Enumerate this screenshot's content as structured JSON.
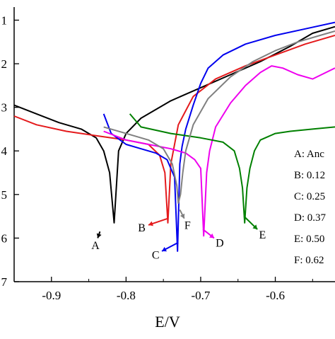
{
  "chart_data": {
    "type": "line",
    "title": "",
    "xlabel": "E/V",
    "ylabel": "",
    "xlim": [
      -0.95,
      -0.52
    ],
    "ylim": [
      -7,
      -0.7
    ],
    "x_ticks": [
      -0.9,
      -0.8,
      -0.7,
      -0.6
    ],
    "x_tick_labels": [
      "-0.9",
      "-0.8",
      "-0.7",
      "-0.6"
    ],
    "y_ticks": [
      -1,
      -2,
      -3,
      -4,
      -5,
      -6,
      -7
    ],
    "y_tick_labels": [
      "1",
      "2",
      "3",
      "4",
      "5",
      "6",
      "7"
    ],
    "grid": false,
    "legend_position": "right",
    "legend": [
      {
        "key": "A",
        "text": "A: Anc"
      },
      {
        "key": "B",
        "text": "B: 0.12"
      },
      {
        "key": "C",
        "text": "C: 0.25"
      },
      {
        "key": "D",
        "text": "D: 0.37"
      },
      {
        "key": "E",
        "text": "E: 0.50"
      },
      {
        "key": "F",
        "text": "F: 0.62"
      }
    ],
    "series": [
      {
        "key": "A",
        "color": "#000000",
        "x": [
          -0.95,
          -0.92,
          -0.89,
          -0.86,
          -0.84,
          -0.83,
          -0.822,
          -0.816,
          -0.81,
          -0.8,
          -0.78,
          -0.74,
          -0.7,
          -0.66,
          -0.62,
          -0.58,
          -0.55,
          -0.52
        ],
        "y": [
          -2.95,
          -3.15,
          -3.35,
          -3.5,
          -3.7,
          -4.0,
          -4.5,
          -5.65,
          -4.0,
          -3.6,
          -3.25,
          -2.85,
          -2.55,
          -2.25,
          -1.95,
          -1.6,
          -1.3,
          -1.15
        ],
        "label_tail": [
          -0.835,
          -5.85
        ],
        "label_pos": [
          -0.838,
          -6.0
        ]
      },
      {
        "key": "B",
        "color": "#e41a1c",
        "x": [
          -0.95,
          -0.92,
          -0.88,
          -0.84,
          -0.8,
          -0.77,
          -0.755,
          -0.748,
          -0.744,
          -0.74,
          -0.73,
          -0.71,
          -0.68,
          -0.64,
          -0.6,
          -0.56,
          -0.52
        ],
        "y": [
          -3.2,
          -3.4,
          -3.55,
          -3.65,
          -3.75,
          -3.85,
          -4.1,
          -4.5,
          -5.65,
          -4.3,
          -3.4,
          -2.75,
          -2.35,
          -2.05,
          -1.8,
          -1.55,
          -1.35
        ],
        "label_tail": [
          -0.744,
          -5.55
        ],
        "label_pos": [
          -0.77,
          -5.7
        ]
      },
      {
        "key": "C",
        "color": "#0000ee",
        "x": [
          -0.83,
          -0.82,
          -0.8,
          -0.78,
          -0.76,
          -0.745,
          -0.735,
          -0.731,
          -0.728,
          -0.725,
          -0.72,
          -0.71,
          -0.7,
          -0.69,
          -0.67,
          -0.64,
          -0.6,
          -0.56,
          -0.52
        ],
        "y": [
          -3.15,
          -3.6,
          -3.85,
          -3.95,
          -4.05,
          -4.2,
          -4.6,
          -6.3,
          -4.3,
          -3.9,
          -3.5,
          -2.95,
          -2.45,
          -2.1,
          -1.8,
          -1.55,
          -1.35,
          -1.2,
          -1.05
        ],
        "label_tail": [
          -0.73,
          -6.1
        ],
        "label_pos": [
          -0.752,
          -6.3
        ]
      },
      {
        "key": "D",
        "color": "#ee00ee",
        "x": [
          -0.83,
          -0.8,
          -0.77,
          -0.74,
          -0.72,
          -0.708,
          -0.7,
          -0.696,
          -0.692,
          -0.688,
          -0.68,
          -0.66,
          -0.64,
          -0.62,
          -0.605,
          -0.59,
          -0.57,
          -0.55,
          -0.52
        ],
        "y": [
          -3.55,
          -3.75,
          -3.85,
          -3.95,
          -4.05,
          -4.2,
          -4.4,
          -5.95,
          -4.5,
          -4.0,
          -3.45,
          -2.9,
          -2.5,
          -2.2,
          -2.05,
          -2.1,
          -2.25,
          -2.35,
          -2.1
        ],
        "label_tail": [
          -0.697,
          -5.8
        ],
        "label_pos": [
          -0.682,
          -6.0
        ]
      },
      {
        "key": "E",
        "color": "#008000",
        "x": [
          -0.795,
          -0.78,
          -0.74,
          -0.7,
          -0.67,
          -0.655,
          -0.648,
          -0.644,
          -0.641,
          -0.638,
          -0.634,
          -0.628,
          -0.62,
          -0.6,
          -0.58,
          -0.55,
          -0.52
        ],
        "y": [
          -3.15,
          -3.45,
          -3.6,
          -3.7,
          -3.8,
          -4.0,
          -4.4,
          -4.85,
          -5.65,
          -4.85,
          -4.4,
          -4.0,
          -3.75,
          -3.6,
          -3.55,
          -3.5,
          -3.45
        ],
        "label_tail": [
          -0.642,
          -5.5
        ],
        "label_pos": [
          -0.624,
          -5.8
        ]
      },
      {
        "key": "F",
        "color": "#808080",
        "x": [
          -0.83,
          -0.8,
          -0.77,
          -0.75,
          -0.738,
          -0.732,
          -0.73,
          -0.727,
          -0.724,
          -0.72,
          -0.71,
          -0.69,
          -0.66,
          -0.63,
          -0.6,
          -0.57,
          -0.54,
          -0.52
        ],
        "y": [
          -3.45,
          -3.6,
          -3.75,
          -3.95,
          -4.3,
          -4.8,
          -5.2,
          -5.0,
          -4.5,
          -4.0,
          -3.4,
          -2.8,
          -2.3,
          -1.95,
          -1.7,
          -1.5,
          -1.35,
          -1.25
        ],
        "label_tail": [
          -0.728,
          -5.35
        ],
        "label_pos": [
          -0.722,
          -5.55
        ]
      }
    ]
  }
}
